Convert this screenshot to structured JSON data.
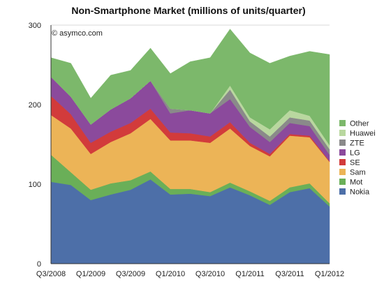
{
  "chart_data": {
    "type": "area",
    "stacked": true,
    "title": "Non-Smartphone Market (millions of units/quarter)",
    "credit": "© asymco.com",
    "xlabel": "",
    "ylabel": "",
    "ylim": [
      0,
      300
    ],
    "y_ticks": [
      "0",
      "100",
      "200",
      "300"
    ],
    "grid": "horizontal",
    "legend_position": "right",
    "x": [
      "Q3/2008",
      "Q4/2008",
      "Q1/2009",
      "Q2/2009",
      "Q3/2009",
      "Q4/2009",
      "Q1/2010",
      "Q2/2010",
      "Q3/2010",
      "Q4/2010",
      "Q1/2011",
      "Q2/2011",
      "Q3/2011",
      "Q4/2011",
      "Q1/2012"
    ],
    "x_tick_labels": [
      "Q3/2008",
      "Q1/2009",
      "Q3/2009",
      "Q1/2010",
      "Q3/2010",
      "Q1/2011",
      "Q3/2011",
      "Q1/2012"
    ],
    "series": [
      {
        "name": "Nokia",
        "color": "#4d6fa8",
        "values": [
          103,
          99,
          80,
          87,
          93,
          106,
          87,
          88,
          85,
          96,
          86,
          74,
          90,
          95,
          72
        ]
      },
      {
        "name": "Mot",
        "color": "#6aaf58",
        "values": [
          34,
          16,
          13,
          14,
          12,
          10,
          7,
          6,
          5,
          6,
          5,
          5,
          6,
          6,
          4
        ]
      },
      {
        "name": "Sam",
        "color": "#ecb457",
        "values": [
          50,
          55,
          45,
          52,
          59,
          66,
          61,
          61,
          62,
          68,
          57,
          56,
          65,
          58,
          52
        ]
      },
      {
        "name": "SE",
        "color": "#d23b3b",
        "values": [
          24,
          18,
          14,
          13,
          13,
          13,
          10,
          9,
          8,
          8,
          4,
          3,
          2,
          2,
          1
        ]
      },
      {
        "name": "LG",
        "color": "#8b4a9c",
        "values": [
          24,
          22,
          23,
          28,
          31,
          35,
          24,
          29,
          29,
          29,
          20,
          15,
          14,
          12,
          8
        ]
      },
      {
        "name": "ZTE",
        "color": "#8a8a8a",
        "values": [
          0,
          0,
          0,
          0,
          0,
          0,
          6,
          0,
          0,
          12,
          7,
          7,
          7,
          7,
          7
        ]
      },
      {
        "name": "Huawei",
        "color": "#b9d79f",
        "values": [
          0,
          0,
          0,
          0,
          0,
          0,
          0,
          0,
          0,
          5,
          5,
          9,
          9,
          6,
          5
        ]
      },
      {
        "name": "Other",
        "color": "#7cb86b",
        "values": [
          24,
          42,
          33,
          43,
          35,
          41,
          44,
          61,
          70,
          71,
          81,
          83,
          68,
          81,
          114
        ]
      }
    ]
  }
}
